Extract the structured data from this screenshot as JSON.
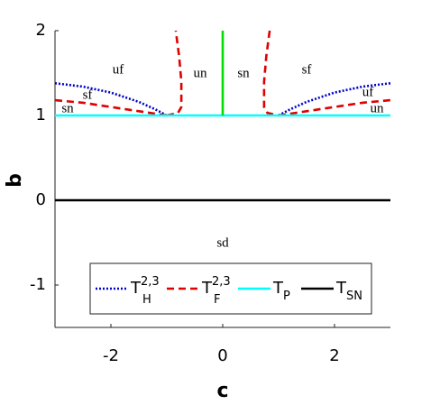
{
  "chart_data": {
    "type": "line",
    "xlabel": "c",
    "ylabel": "b",
    "xlim": [
      -3,
      3
    ],
    "ylim": [
      -1.5,
      2
    ],
    "xticks": [
      -2,
      0,
      2
    ],
    "yticks": [
      -1,
      0,
      1,
      2
    ],
    "series": [
      {
        "name": "T",
        "name_sub": "H",
        "name_sup": "2,3",
        "color": "#0000cc",
        "dash": "dotted",
        "x": [
          -3,
          -2.5,
          -2,
          -1.5,
          -1.2,
          -1.0,
          null,
          1.0,
          1.2,
          1.5,
          2,
          2.5,
          3
        ],
        "values": [
          1.38,
          1.34,
          1.27,
          1.16,
          1.07,
          1.0,
          null,
          1.0,
          1.07,
          1.16,
          1.27,
          1.34,
          1.38
        ]
      },
      {
        "name": "T",
        "name_sub": "F",
        "name_sup": "2,3",
        "color": "#e00000",
        "dash": "dashed",
        "x": [
          -3,
          -2.5,
          -2,
          -1.5,
          -1.2,
          -1.0,
          null,
          -1.0,
          -0.8,
          -0.74,
          -0.74,
          -0.78,
          -0.84,
          null,
          0.84,
          0.78,
          0.74,
          0.74,
          0.8,
          1.0,
          null,
          1.0,
          1.2,
          1.5,
          2,
          2.5,
          3
        ],
        "values": [
          1.18,
          1.15,
          1.1,
          1.05,
          1.02,
          1.0,
          null,
          1.0,
          1.03,
          1.1,
          1.4,
          1.7,
          2.0,
          null,
          2.0,
          1.7,
          1.4,
          1.1,
          1.03,
          1.0,
          null,
          1.0,
          1.02,
          1.05,
          1.1,
          1.15,
          1.18
        ]
      },
      {
        "name": "T",
        "name_sub": "P",
        "color": "#00ffff",
        "dash": "solid",
        "x": [
          -3,
          3
        ],
        "values": [
          1,
          1
        ]
      },
      {
        "name": "T",
        "name_sub": "SN",
        "color": "#000000",
        "dash": "solid",
        "x": [
          -3,
          3
        ],
        "values": [
          0,
          0
        ]
      },
      {
        "color": "#00dd00",
        "dash": "solid",
        "x": [
          0,
          0
        ],
        "values": [
          1,
          2
        ]
      }
    ],
    "annotations": [
      "uf",
      "sf",
      "sn",
      "un",
      "sn",
      "sf",
      "uf",
      "un",
      "sd"
    ]
  }
}
